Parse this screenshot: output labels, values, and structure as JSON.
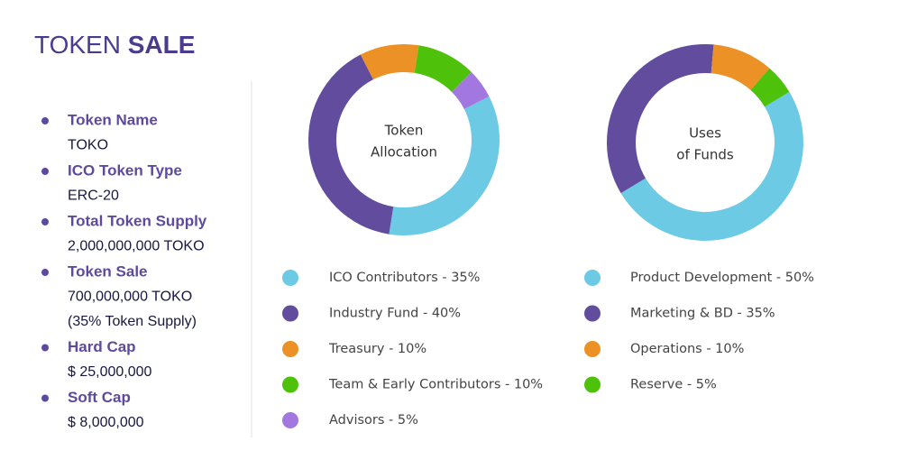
{
  "header": {
    "title_parts": [
      "TOKEN",
      "SALE"
    ]
  },
  "list": [
    {
      "label": "Token Name",
      "lines": [
        "TOKO"
      ]
    },
    {
      "label": "ICO Token Type",
      "lines": [
        "ERC-20"
      ]
    },
    {
      "label": "Total Token Supply",
      "lines": [
        "2,000,000,000 TOKO"
      ]
    },
    {
      "label": "Token Sale",
      "lines": [
        "700,000,000 TOKO",
        "(35% Token Supply)"
      ]
    },
    {
      "label": "Hard Cap",
      "lines": [
        "$ 25,000,000"
      ]
    },
    {
      "label": "Soft Cap",
      "lines": [
        "$ 8,000,000"
      ]
    }
  ],
  "chart_data": [
    {
      "type": "donut",
      "center_label": [
        "Token",
        "Allocation"
      ],
      "categories": [
        "ICO Contributors - 35%",
        "Industry Fund - 40%",
        "Treasury - 10%",
        "Team & Early Contributors - 10%",
        "Advisors - 5%"
      ],
      "values": [
        35,
        40,
        10,
        10,
        5
      ],
      "colors": [
        "#6ccae4",
        "#624c9e",
        "#ec9126",
        "#4ec10a",
        "#a278e0"
      ]
    },
    {
      "type": "donut",
      "center_label": [
        "Uses",
        "of Funds"
      ],
      "categories": [
        "Product Development - 50%",
        "Marketing & BD - 35%",
        "Operations - 10%",
        "Reserve - 5%"
      ],
      "values": [
        50,
        35,
        10,
        5
      ],
      "colors": [
        "#6ccae4",
        "#624c9e",
        "#ec9126",
        "#4ec10a"
      ]
    }
  ]
}
